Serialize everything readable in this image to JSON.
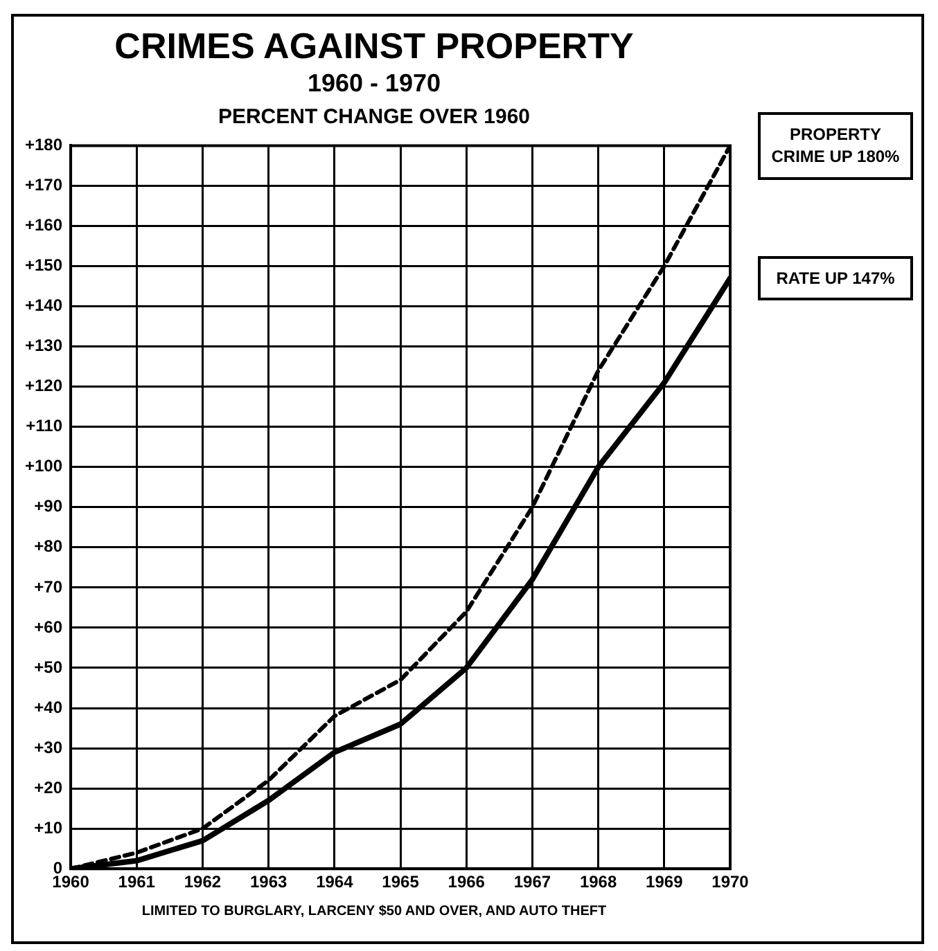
{
  "chart_data": {
    "type": "line",
    "title": "CRIMES AGAINST PROPERTY",
    "subtitle": "1960 - 1970",
    "ylabel": "PERCENT CHANGE OVER 1960",
    "x": [
      1960,
      1961,
      1962,
      1963,
      1964,
      1965,
      1966,
      1967,
      1968,
      1969,
      1970
    ],
    "series": [
      {
        "color": "#000000",
        "line_style": "dashed",
        "values": [
          0,
          4,
          10,
          22,
          38,
          47,
          64,
          90,
          124,
          150,
          180
        ]
      },
      {
        "color": "#000000",
        "line_style": "solid",
        "values": [
          0,
          2,
          7,
          17,
          29,
          36,
          50,
          72,
          100,
          121,
          147
        ]
      }
    ],
    "xlim": [
      1960,
      1970
    ],
    "xticks": [
      1960,
      1961,
      1962,
      1963,
      1964,
      1965,
      1966,
      1967,
      1968,
      1969,
      1970
    ],
    "ylim": [
      0,
      180
    ],
    "yticks": [
      0,
      {
        "value": 10,
        "label": "+10"
      },
      {
        "value": 20,
        "label": "+20"
      },
      {
        "value": 30,
        "label": "+30"
      },
      {
        "value": 40,
        "label": "+40"
      },
      {
        "value": 50,
        "label": "+50"
      },
      {
        "value": 60,
        "label": "+60"
      },
      {
        "value": 70,
        "label": "+70"
      },
      {
        "value": 80,
        "label": "+80"
      },
      {
        "value": 90,
        "label": "+90"
      },
      {
        "value": 100,
        "label": "+100"
      },
      {
        "value": 110,
        "label": "+110"
      },
      {
        "value": 120,
        "label": "+120"
      },
      {
        "value": 130,
        "label": "+130"
      },
      {
        "value": 140,
        "label": "+140"
      },
      {
        "value": 150,
        "label": "+150"
      },
      {
        "value": 160,
        "label": "+160"
      },
      {
        "value": 170,
        "label": "+170"
      },
      {
        "value": 180,
        "label": "+180"
      }
    ],
    "grid": true,
    "legend": false,
    "marker": "none",
    "annotations": [
      {
        "text": "PROPERTY CRIME UP 180%",
        "x": 1970,
        "y": 180
      },
      {
        "text": "RATE UP 147%",
        "x": 1970,
        "y": 147
      },
      "LIMITED TO BURGLARY, LARCENY $50 AND OVER, AND AUTO THEFT"
    ]
  }
}
